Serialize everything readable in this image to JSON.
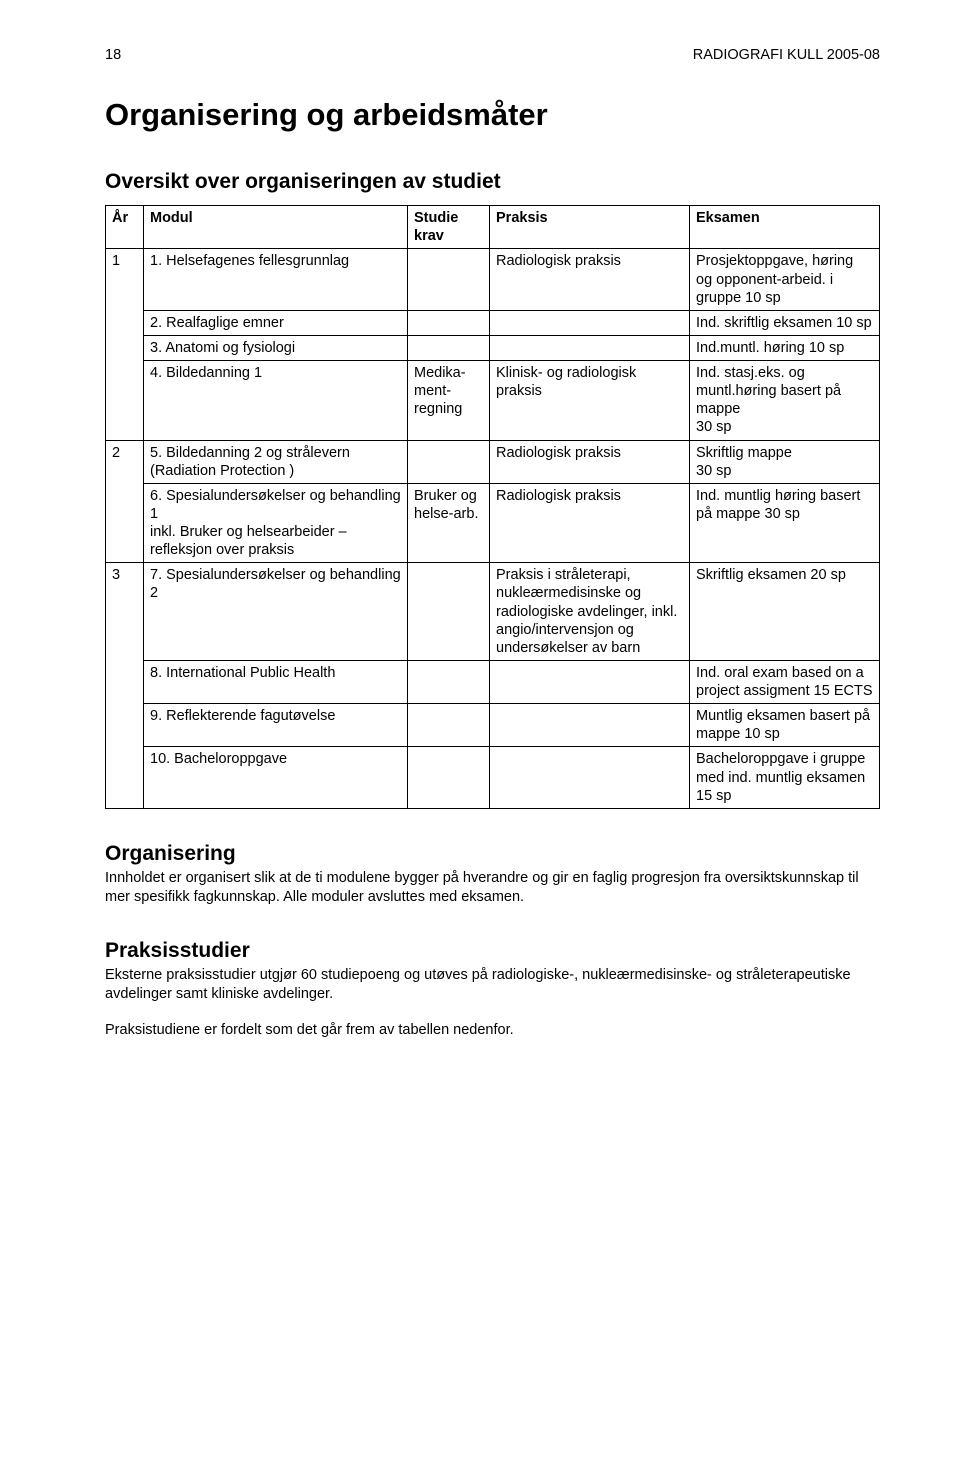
{
  "header": {
    "page_number": "18",
    "doc_title": "RADIOGRAFI KULL 2005-08"
  },
  "titles": {
    "main": "Organisering og arbeidsmåter",
    "overview": "Oversikt over organiseringen av studiet"
  },
  "table": {
    "columns": [
      "År",
      "Modul",
      "Studie\nkrav",
      "Praksis",
      "Eksamen"
    ],
    "rows": [
      {
        "year": "1",
        "year_rowspan": 4,
        "modul": "1. Helsefagenes fellesgrunnlag",
        "studie": "",
        "praksis": "Radiologisk praksis",
        "eksamen": "Prosjektoppgave, høring og opponent-arbeid. i gruppe 10 sp"
      },
      {
        "year": "",
        "modul": "2. Realfaglige emner",
        "studie": "",
        "praksis": "",
        "eksamen": "Ind. skriftlig eksamen 10 sp"
      },
      {
        "year": "",
        "modul": "3. Anatomi og fysiologi",
        "studie": "",
        "praksis": "",
        "eksamen": "Ind.muntl. høring 10 sp"
      },
      {
        "year": "",
        "modul": "4. Bildedanning 1",
        "studie": "Medika-ment-regning",
        "praksis": "Klinisk- og radiologisk praksis",
        "eksamen": "Ind. stasj.eks. og muntl.høring basert på mappe\n30 sp"
      },
      {
        "year": "2",
        "year_rowspan": 2,
        "modul": "5. Bildedanning 2 og strålevern (Radiation Protection )",
        "studie": "",
        "praksis": "Radiologisk praksis",
        "eksamen": "Skriftlig mappe\n30 sp"
      },
      {
        "year": "",
        "modul": "6. Spesialundersøkelser og behandling 1\ninkl. Bruker og helsearbeider – refleksjon over praksis",
        "studie": "Bruker og helse-arb.",
        "praksis": "Radiologisk praksis",
        "eksamen": "Ind. muntlig høring basert på mappe 30 sp"
      },
      {
        "year": "3",
        "year_rowspan": 4,
        "modul": "7. Spesialundersøkelser og behandling 2",
        "studie": "",
        "praksis": "Praksis i stråleterapi, nukleærmedisinske og radiologiske avdelinger, inkl. angio/intervensjon og undersøkelser av barn",
        "eksamen": "Skriftlig eksamen 20 sp"
      },
      {
        "year": "",
        "modul": "8. International Public Health",
        "studie": "",
        "praksis": "",
        "eksamen": "Ind. oral exam based on a project assigment 15 ECTS"
      },
      {
        "year": "",
        "modul": "9. Reflekterende fagutøvelse",
        "studie": "",
        "praksis": "",
        "eksamen": "Muntlig eksamen basert på mappe 10 sp"
      },
      {
        "year": "",
        "modul": "10. Bacheloroppgave",
        "studie": "",
        "praksis": "",
        "eksamen": "Bacheloroppgave i gruppe med ind. muntlig eksamen 15 sp"
      }
    ]
  },
  "sections": {
    "organisering": {
      "title": "Organisering",
      "text": "Innholdet er organisert slik at de ti modulene bygger på hverandre og gir en faglig progresjon fra oversiktskunnskap til mer spesifikk fagkunnskap. Alle moduler avsluttes med eksamen."
    },
    "praksisstudier": {
      "title": "Praksisstudier",
      "text1": "Eksterne praksisstudier utgjør 60 studiepoeng og utøves på radiologiske-, nukleærmedisinske- og stråleterapeutiske avdelinger samt kliniske avdelinger.",
      "text2": "Praksistudiene er fordelt som det går frem av tabellen nedenfor."
    }
  }
}
